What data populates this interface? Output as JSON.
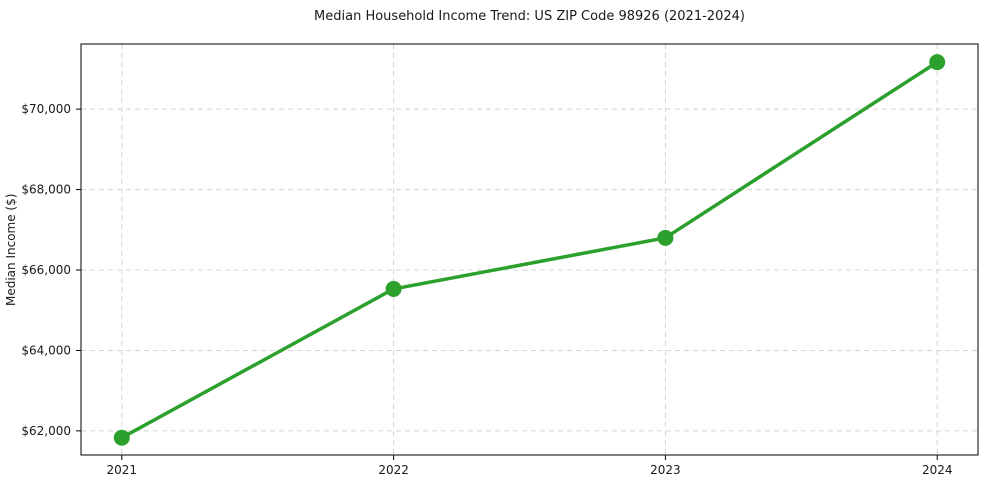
{
  "chart_data": {
    "type": "line",
    "title": "Median Household Income Trend: US ZIP Code 98926 (2021-2024)",
    "xlabel": "",
    "ylabel": "Median Income ($)",
    "x": [
      2021,
      2022,
      2023,
      2024
    ],
    "xtick_labels": [
      "2021",
      "2022",
      "2023",
      "2024"
    ],
    "series": [
      {
        "name": "Median household income",
        "values": [
          61830,
          65530,
          66800,
          71170
        ]
      }
    ],
    "ytick_values": [
      62000,
      64000,
      66000,
      68000,
      70000
    ],
    "ytick_labels": [
      "$62,000",
      "$64,000",
      "$66,000",
      "$68,000",
      "$70,000"
    ],
    "xlim": [
      2020.85,
      2024.15
    ],
    "ylim": [
      61400,
      71620
    ],
    "grid": true,
    "grid_style": "dashed",
    "legend": "none",
    "line_color": "#2ca02c",
    "marker_color": "#2ca02c",
    "grid_color": "#d4d4d4",
    "spine_color": "#000000",
    "text_color": "#1a1a1a"
  }
}
